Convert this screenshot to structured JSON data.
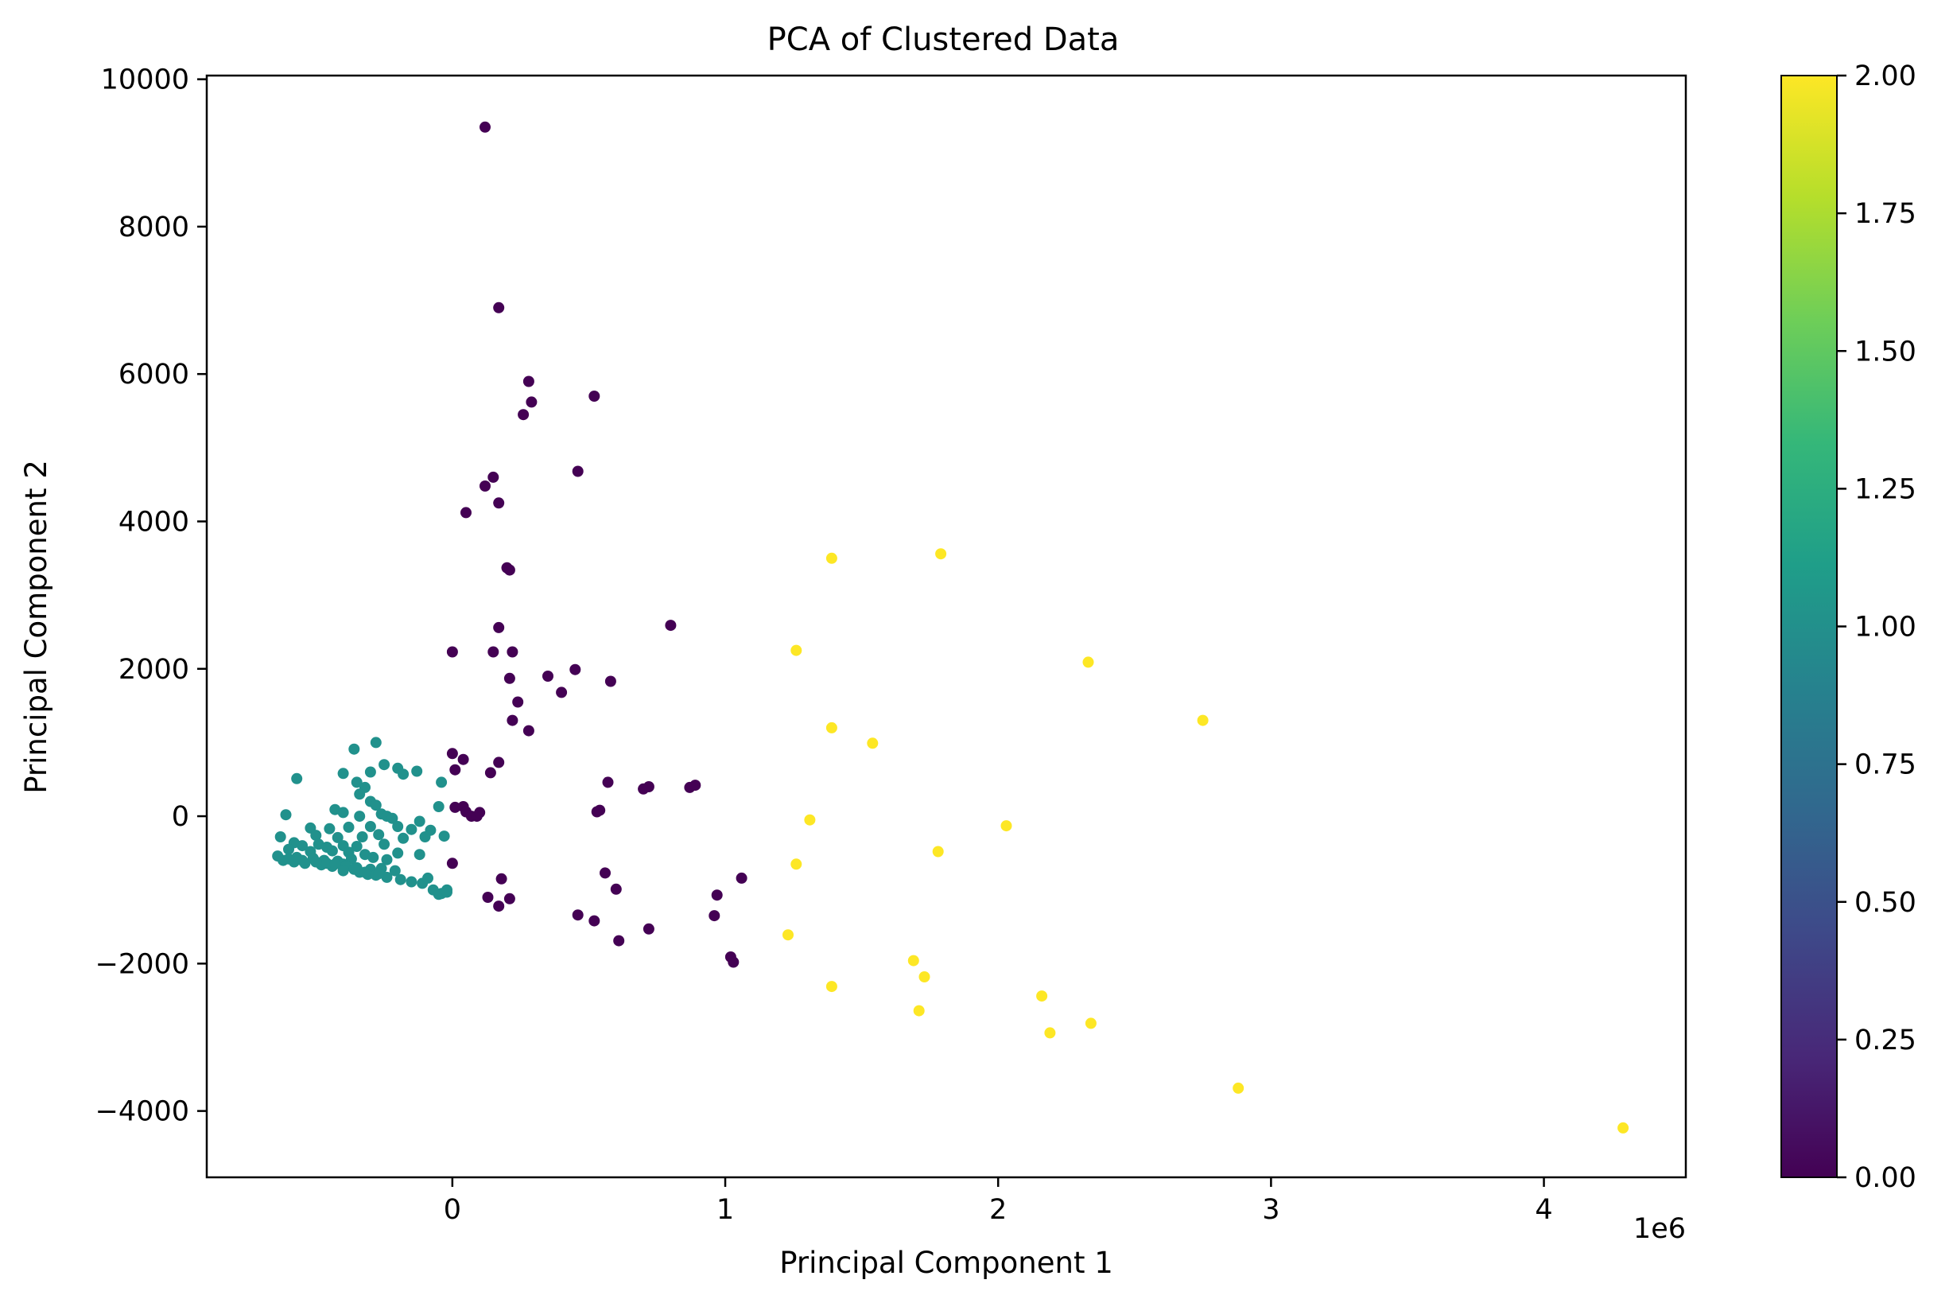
{
  "chart_data": {
    "type": "scatter",
    "title": "PCA of Clustered Data",
    "xlabel": "Principal Component 1",
    "ylabel": "Principal Component 2",
    "x_offset_label": "1e6",
    "x_scale": 1000000,
    "xlim": [
      -0.9,
      4.52
    ],
    "ylim": [
      -4900,
      10050
    ],
    "xticks": [
      0,
      1,
      2,
      3,
      4
    ],
    "xtick_labels": [
      "0",
      "1",
      "2",
      "3",
      "4"
    ],
    "yticks": [
      -4000,
      -2000,
      0,
      2000,
      4000,
      6000,
      8000,
      10000
    ],
    "ytick_labels": [
      "−4000",
      "−2000",
      "0",
      "2000",
      "4000",
      "6000",
      "8000",
      "10000"
    ],
    "grid": false,
    "colorbar": {
      "range": [
        0,
        2
      ],
      "ticks": [
        0,
        0.25,
        0.5,
        0.75,
        1.0,
        1.25,
        1.5,
        1.75,
        2.0
      ],
      "tick_labels": [
        "0.00",
        "0.25",
        "0.50",
        "0.75",
        "1.00",
        "1.25",
        "1.50",
        "1.75",
        "2.00"
      ],
      "colormap": [
        "#440154",
        "#482878",
        "#3e4989",
        "#31688e",
        "#26828e",
        "#1f9e89",
        "#35b779",
        "#6ece58",
        "#b5de2b",
        "#fde725"
      ]
    },
    "series": [
      {
        "cluster": 0,
        "color": "#440154",
        "points": [
          [
            0.12,
            9350
          ],
          [
            0.17,
            6900
          ],
          [
            0.28,
            5900
          ],
          [
            0.29,
            5620
          ],
          [
            0.52,
            5700
          ],
          [
            0.26,
            5450
          ],
          [
            0.15,
            4600
          ],
          [
            0.12,
            4480
          ],
          [
            0.17,
            4250
          ],
          [
            0.46,
            4680
          ],
          [
            0.05,
            4120
          ],
          [
            0.2,
            3370
          ],
          [
            0.21,
            3340
          ],
          [
            0.8,
            2590
          ],
          [
            0.17,
            2560
          ],
          [
            0.0,
            2230
          ],
          [
            0.15,
            2230
          ],
          [
            0.22,
            2230
          ],
          [
            0.45,
            1990
          ],
          [
            0.35,
            1900
          ],
          [
            0.21,
            1870
          ],
          [
            0.58,
            1830
          ],
          [
            0.4,
            1680
          ],
          [
            0.24,
            1550
          ],
          [
            0.22,
            1300
          ],
          [
            0.28,
            1160
          ],
          [
            0.0,
            850
          ],
          [
            0.04,
            770
          ],
          [
            0.17,
            730
          ],
          [
            0.01,
            630
          ],
          [
            0.14,
            590
          ],
          [
            0.57,
            460
          ],
          [
            0.87,
            390
          ],
          [
            0.89,
            420
          ],
          [
            0.72,
            400
          ],
          [
            0.7,
            370
          ],
          [
            0.01,
            120
          ],
          [
            0.04,
            130
          ],
          [
            0.05,
            60
          ],
          [
            0.07,
            0
          ],
          [
            0.09,
            0
          ],
          [
            0.1,
            50
          ],
          [
            0.53,
            60
          ],
          [
            0.54,
            80
          ],
          [
            0.0,
            -640
          ],
          [
            0.56,
            -770
          ],
          [
            1.06,
            -840
          ],
          [
            0.18,
            -850
          ],
          [
            0.6,
            -990
          ],
          [
            0.97,
            -1070
          ],
          [
            0.13,
            -1100
          ],
          [
            0.21,
            -1120
          ],
          [
            0.17,
            -1220
          ],
          [
            0.46,
            -1340
          ],
          [
            0.52,
            -1420
          ],
          [
            0.96,
            -1350
          ],
          [
            0.72,
            -1530
          ],
          [
            0.61,
            -1690
          ],
          [
            1.02,
            -1910
          ],
          [
            1.03,
            -1980
          ]
        ]
      },
      {
        "cluster": 1,
        "color": "#21918c",
        "points": [
          [
            -0.28,
            1000
          ],
          [
            -0.36,
            910
          ],
          [
            -0.25,
            700
          ],
          [
            -0.2,
            650
          ],
          [
            -0.4,
            580
          ],
          [
            -0.3,
            600
          ],
          [
            -0.13,
            610
          ],
          [
            -0.18,
            570
          ],
          [
            -0.57,
            510
          ],
          [
            -0.35,
            460
          ],
          [
            -0.04,
            460
          ],
          [
            -0.32,
            390
          ],
          [
            -0.34,
            300
          ],
          [
            -0.3,
            200
          ],
          [
            -0.28,
            150
          ],
          [
            -0.05,
            130
          ],
          [
            -0.43,
            90
          ],
          [
            -0.4,
            50
          ],
          [
            -0.26,
            30
          ],
          [
            -0.24,
            0
          ],
          [
            -0.61,
            20
          ],
          [
            -0.34,
            0
          ],
          [
            -0.22,
            -30
          ],
          [
            -0.12,
            -70
          ],
          [
            -0.52,
            -160
          ],
          [
            -0.45,
            -170
          ],
          [
            -0.38,
            -150
          ],
          [
            -0.3,
            -140
          ],
          [
            -0.2,
            -140
          ],
          [
            -0.15,
            -180
          ],
          [
            -0.08,
            -190
          ],
          [
            -0.03,
            -270
          ],
          [
            -0.63,
            -280
          ],
          [
            -0.5,
            -260
          ],
          [
            -0.42,
            -290
          ],
          [
            -0.33,
            -280
          ],
          [
            -0.27,
            -250
          ],
          [
            -0.18,
            -300
          ],
          [
            -0.1,
            -280
          ],
          [
            -0.58,
            -360
          ],
          [
            -0.55,
            -400
          ],
          [
            -0.49,
            -380
          ],
          [
            -0.46,
            -420
          ],
          [
            -0.4,
            -400
          ],
          [
            -0.35,
            -410
          ],
          [
            -0.25,
            -380
          ],
          [
            -0.6,
            -450
          ],
          [
            -0.52,
            -480
          ],
          [
            -0.44,
            -470
          ],
          [
            -0.38,
            -490
          ],
          [
            -0.32,
            -520
          ],
          [
            -0.2,
            -500
          ],
          [
            -0.12,
            -520
          ],
          [
            -0.64,
            -540
          ],
          [
            -0.57,
            -560
          ],
          [
            -0.51,
            -570
          ],
          [
            -0.47,
            -600
          ],
          [
            -0.42,
            -610
          ],
          [
            -0.37,
            -580
          ],
          [
            -0.29,
            -560
          ],
          [
            -0.24,
            -590
          ],
          [
            -0.62,
            -600
          ],
          [
            -0.58,
            -620
          ],
          [
            -0.54,
            -640
          ],
          [
            -0.48,
            -660
          ],
          [
            -0.44,
            -680
          ],
          [
            -0.4,
            -650
          ],
          [
            -0.35,
            -700
          ],
          [
            -0.3,
            -720
          ],
          [
            -0.26,
            -710
          ],
          [
            -0.21,
            -740
          ],
          [
            -0.6,
            -580
          ],
          [
            -0.55,
            -600
          ],
          [
            -0.5,
            -620
          ],
          [
            -0.46,
            -640
          ],
          [
            -0.43,
            -650
          ],
          [
            -0.39,
            -680
          ],
          [
            -0.34,
            -760
          ],
          [
            -0.31,
            -790
          ],
          [
            -0.28,
            -800
          ],
          [
            -0.24,
            -830
          ],
          [
            -0.19,
            -860
          ],
          [
            -0.4,
            -740
          ],
          [
            -0.15,
            -890
          ],
          [
            -0.11,
            -910
          ],
          [
            -0.09,
            -840
          ],
          [
            -0.07,
            -1000
          ],
          [
            -0.04,
            -1050
          ],
          [
            -0.02,
            -1000
          ],
          [
            -0.05,
            -1060
          ],
          [
            -0.02,
            -1030
          ],
          [
            -0.36,
            -720
          ],
          [
            -0.32,
            -760
          ],
          [
            -0.27,
            -780
          ]
        ]
      },
      {
        "cluster": 2,
        "color": "#fde725",
        "points": [
          [
            1.39,
            3500
          ],
          [
            1.79,
            3560
          ],
          [
            1.26,
            2250
          ],
          [
            2.33,
            2090
          ],
          [
            2.75,
            1300
          ],
          [
            1.39,
            1200
          ],
          [
            1.54,
            990
          ],
          [
            1.31,
            -50
          ],
          [
            2.03,
            -130
          ],
          [
            1.26,
            -650
          ],
          [
            1.78,
            -480
          ],
          [
            1.23,
            -1610
          ],
          [
            1.69,
            -1960
          ],
          [
            1.73,
            -2180
          ],
          [
            1.39,
            -2310
          ],
          [
            2.16,
            -2440
          ],
          [
            1.71,
            -2640
          ],
          [
            2.34,
            -2810
          ],
          [
            2.19,
            -2940
          ],
          [
            2.88,
            -3690
          ],
          [
            4.29,
            -4230
          ]
        ]
      }
    ]
  }
}
